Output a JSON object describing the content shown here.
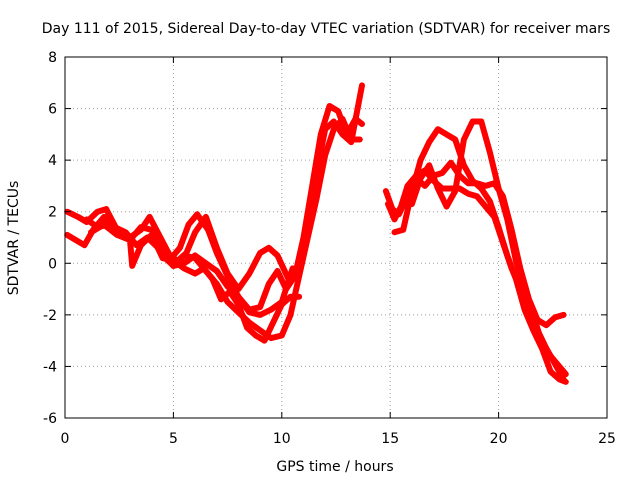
{
  "chart_data": {
    "type": "line",
    "title": "Day 111 of 2015, Sidereal Day-to-day VTEC variation (SDTVAR) for receiver mars",
    "xlabel": "GPS time / hours",
    "ylabel": "SDTVAR / TECUs",
    "xlim": [
      0,
      25
    ],
    "ylim": [
      -6,
      8
    ],
    "xticks": [
      0,
      5,
      10,
      15,
      20,
      25
    ],
    "yticks": [
      -6,
      -4,
      -2,
      0,
      2,
      4,
      6,
      8
    ],
    "grid": true,
    "legend": "none",
    "color": "#ff0000",
    "series": [
      {
        "name": "track-1",
        "x": [
          0.1,
          0.6,
          1.0,
          1.5,
          1.9,
          2.4,
          3.0,
          3.5,
          3.9,
          4.4,
          4.9,
          5.3,
          5.7,
          6.1,
          6.6,
          7.0,
          7.5,
          8.0,
          8.5,
          9.0,
          9.4,
          9.8,
          10.2,
          10.6,
          11.0,
          11.4,
          11.8,
          12.2,
          12.6,
          13.0,
          13.4,
          13.7
        ],
        "y": [
          2.0,
          1.8,
          1.6,
          2.0,
          2.1,
          1.3,
          1.0,
          1.3,
          1.8,
          1.0,
          0.2,
          0.6,
          1.5,
          1.9,
          1.3,
          0.4,
          -0.5,
          -1.3,
          -1.8,
          -1.7,
          -0.8,
          -0.3,
          -1.0,
          -0.5,
          1.0,
          3.0,
          5.0,
          6.1,
          5.9,
          5.0,
          5.6,
          5.4
        ]
      },
      {
        "name": "track-2",
        "x": [
          0.1,
          0.5,
          0.9,
          1.3,
          1.8,
          2.3,
          2.8,
          3.3,
          3.8,
          4.3,
          4.8,
          5.2,
          5.6,
          6.0,
          6.5,
          7.0,
          7.5,
          8.0,
          8.5,
          9.0,
          9.4,
          9.8,
          10.3,
          10.8,
          11.2,
          11.6,
          12.0,
          12.4,
          12.8,
          13.2,
          13.7
        ],
        "y": [
          1.1,
          0.9,
          0.7,
          1.3,
          1.8,
          1.4,
          1.2,
          0.7,
          1.0,
          0.6,
          0.3,
          0.1,
          0.4,
          1.2,
          1.8,
          0.6,
          -0.4,
          -1.0,
          -0.4,
          0.4,
          0.6,
          0.3,
          -0.6,
          -0.3,
          1.5,
          3.5,
          5.2,
          5.5,
          5.0,
          4.7,
          6.9
        ]
      },
      {
        "name": "track-3",
        "x": [
          1.0,
          1.5,
          2.0,
          2.5,
          3.0,
          3.5,
          4.0,
          4.5,
          5.0,
          5.5,
          6.0,
          6.5,
          7.0,
          7.5,
          8.0,
          8.5,
          9.0,
          9.5,
          10.0,
          10.4,
          10.8,
          11.2,
          11.6,
          12.0,
          12.4,
          12.8,
          13.2,
          13.6
        ],
        "y": [
          1.7,
          1.4,
          1.5,
          1.2,
          0.9,
          1.4,
          1.3,
          0.5,
          -0.1,
          0.3,
          0.2,
          -0.3,
          -0.8,
          -1.5,
          -1.9,
          -2.3,
          -2.6,
          -2.9,
          -2.8,
          -2.0,
          -0.5,
          1.0,
          2.5,
          4.2,
          5.2,
          5.6,
          4.8,
          4.8
        ]
      },
      {
        "name": "track-4",
        "x": [
          1.2,
          1.8,
          2.4,
          3.0,
          3.1,
          3.5,
          4.0,
          4.5,
          5.0,
          5.5,
          6.0,
          6.4,
          6.8,
          7.2,
          7.6,
          8.0,
          8.4,
          8.8,
          9.2,
          9.6,
          10.0,
          10.4,
          10.8
        ],
        "y": [
          1.2,
          1.5,
          1.1,
          0.9,
          -0.1,
          0.7,
          1.1,
          0.2,
          0.1,
          -0.2,
          -0.4,
          -0.2,
          -0.6,
          -1.4,
          -1.1,
          -1.6,
          -2.5,
          -2.8,
          -3.0,
          -2.3,
          -1.6,
          -1.3,
          -1.3
        ]
      },
      {
        "name": "track-5",
        "x": [
          4.0,
          4.5,
          5.0,
          5.5,
          6.0,
          6.5,
          7.0,
          7.5,
          8.0,
          8.5,
          9.0,
          9.5,
          10.0,
          10.5
        ],
        "y": [
          1.3,
          0.3,
          -0.1,
          0.0,
          0.3,
          0.0,
          -0.3,
          -0.9,
          -1.3,
          -1.9,
          -2.0,
          -1.8,
          -1.5,
          -0.2
        ]
      },
      {
        "name": "track-6",
        "x": [
          14.8,
          15.1,
          15.4,
          15.8,
          16.2,
          16.6,
          17.0,
          17.4,
          17.8,
          18.2,
          18.6,
          19.0,
          19.4,
          19.8,
          20.2,
          20.6,
          21.0,
          21.4,
          21.8,
          22.2,
          22.6,
          23.0
        ],
        "y": [
          2.8,
          2.1,
          1.9,
          2.6,
          3.3,
          3.0,
          3.4,
          3.5,
          3.9,
          3.4,
          3.1,
          3.1,
          3.0,
          3.1,
          2.6,
          1.3,
          -0.2,
          -1.4,
          -2.2,
          -2.4,
          -2.1,
          -2.0
        ]
      },
      {
        "name": "track-7",
        "x": [
          14.9,
          15.2,
          15.5,
          15.8,
          16.2,
          16.6,
          17.0,
          17.4,
          17.8,
          18.2,
          18.6,
          19.0,
          19.4,
          19.8,
          20.2,
          20.6,
          21.0,
          21.4,
          21.8,
          22.2,
          22.6,
          23.0
        ],
        "y": [
          2.3,
          1.7,
          2.2,
          3.0,
          3.4,
          3.6,
          3.2,
          2.9,
          2.9,
          2.9,
          2.7,
          2.6,
          2.2,
          1.8,
          0.8,
          -0.2,
          -1.0,
          -1.9,
          -2.6,
          -3.3,
          -3.9,
          -4.5
        ]
      },
      {
        "name": "track-8",
        "x": [
          15.2,
          15.6,
          16.0,
          16.4,
          16.8,
          17.2,
          17.6,
          18.0,
          18.4,
          18.8,
          19.2,
          19.6,
          20.0,
          20.4,
          20.8,
          21.2,
          21.6,
          22.0,
          22.4,
          22.8,
          23.1
        ],
        "y": [
          1.2,
          1.3,
          2.8,
          4.0,
          4.7,
          5.2,
          5.0,
          4.8,
          3.8,
          3.2,
          2.9,
          2.4,
          1.4,
          0.3,
          -0.6,
          -1.8,
          -2.6,
          -3.3,
          -4.2,
          -4.5,
          -4.6
        ]
      },
      {
        "name": "track-9",
        "x": [
          16.0,
          16.4,
          16.8,
          17.2,
          17.6,
          18.0,
          18.4,
          18.8,
          19.2,
          19.6,
          20.0,
          20.4,
          20.8,
          21.2,
          21.6,
          22.0,
          22.4,
          22.8,
          23.1
        ],
        "y": [
          2.3,
          3.3,
          3.8,
          2.9,
          2.2,
          2.8,
          4.8,
          5.5,
          5.5,
          4.3,
          2.9,
          1.7,
          0.1,
          -1.0,
          -2.0,
          -3.1,
          -3.6,
          -4.0,
          -4.3
        ]
      }
    ]
  }
}
